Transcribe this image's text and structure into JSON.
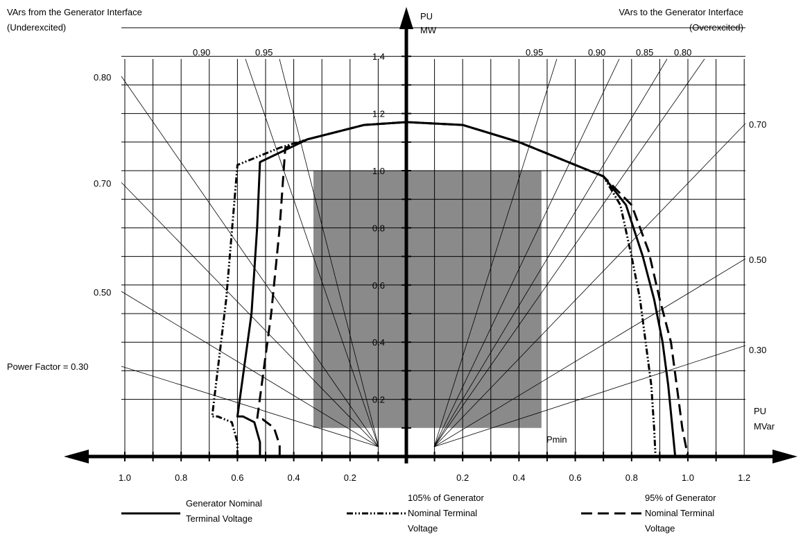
{
  "chart_data": {
    "type": "line",
    "title": "",
    "header_left": [
      "VArs from the Generator Interface",
      "(Underexcited)"
    ],
    "header_right": [
      "VArs to the Generator Interface",
      "(Overexcited)"
    ],
    "y_axis_label": [
      "PU",
      "MW"
    ],
    "x_axis_label": [
      "PU",
      "MVar"
    ],
    "xlim": [
      -1.1,
      1.2
    ],
    "ylim": [
      0,
      1.4
    ],
    "grid": true,
    "x_ticks_left": [
      "1.0",
      "0.8",
      "0.6",
      "0.4",
      "0.2"
    ],
    "x_ticks_right": [
      "0.2",
      "0.4",
      "0.6",
      "0.8",
      "1.0",
      "1.2"
    ],
    "y_ticks": [
      "0.2",
      "0.4",
      "0.6",
      "0.8",
      "1.0",
      "1.2",
      "1.4"
    ],
    "pmin_label": "Pmin",
    "shaded_region": {
      "x": [
        -0.33,
        0.48
      ],
      "y": [
        0.1,
        1.0
      ]
    },
    "power_factor_lines": [
      {
        "pf": "0.90",
        "side": "top"
      },
      {
        "pf": "0.95",
        "side": "top"
      },
      {
        "pf": "0.95",
        "side": "top"
      },
      {
        "pf": "0.90",
        "side": "top"
      },
      {
        "pf": "0.85",
        "side": "top"
      },
      {
        "pf": "0.80",
        "side": "top"
      },
      {
        "pf": "0.80",
        "side": "left"
      },
      {
        "pf": "0.70",
        "side": "left"
      },
      {
        "pf": "0.50",
        "side": "left"
      },
      {
        "pf": "Power Factor = 0.30",
        "side": "left"
      },
      {
        "pf": "0.70",
        "side": "right"
      },
      {
        "pf": "0.50",
        "side": "right"
      },
      {
        "pf": "0.30",
        "side": "right"
      }
    ],
    "series": [
      {
        "name": "Generator Nominal Terminal Voltage",
        "style": "solid",
        "points": [
          [
            -0.52,
            0.0
          ],
          [
            -0.52,
            0.05
          ],
          [
            -0.54,
            0.12
          ],
          [
            -0.58,
            0.14
          ],
          [
            -0.6,
            0.14
          ],
          [
            -0.55,
            0.5
          ],
          [
            -0.53,
            0.8
          ],
          [
            -0.52,
            1.03
          ],
          [
            -0.35,
            1.11
          ],
          [
            -0.15,
            1.16
          ],
          [
            0.0,
            1.17
          ],
          [
            0.2,
            1.16
          ],
          [
            0.4,
            1.1
          ],
          [
            0.55,
            1.04
          ],
          [
            0.7,
            0.98
          ],
          [
            0.78,
            0.88
          ],
          [
            0.84,
            0.7
          ],
          [
            0.88,
            0.55
          ],
          [
            0.91,
            0.4
          ],
          [
            0.93,
            0.25
          ],
          [
            0.945,
            0.1
          ],
          [
            0.955,
            0.0
          ]
        ]
      },
      {
        "name": "105% of Generator Nominal Terminal Voltage",
        "style": "dash-dot-dot",
        "points": [
          [
            -0.6,
            0.0
          ],
          [
            -0.6,
            0.05
          ],
          [
            -0.62,
            0.12
          ],
          [
            -0.67,
            0.14
          ],
          [
            -0.69,
            0.14
          ],
          [
            -0.64,
            0.55
          ],
          [
            -0.6,
            1.02
          ],
          [
            -0.45,
            1.08
          ],
          [
            -0.35,
            1.11
          ],
          [
            -0.15,
            1.16
          ],
          [
            0.0,
            1.17
          ],
          [
            0.2,
            1.16
          ],
          [
            0.4,
            1.1
          ],
          [
            0.55,
            1.04
          ],
          [
            0.7,
            0.98
          ],
          [
            0.76,
            0.88
          ],
          [
            0.8,
            0.7
          ],
          [
            0.83,
            0.55
          ],
          [
            0.85,
            0.4
          ],
          [
            0.87,
            0.25
          ],
          [
            0.88,
            0.1
          ],
          [
            0.885,
            0.0
          ]
        ]
      },
      {
        "name": "95% of Generator Nominal Terminal Voltage",
        "style": "dashed",
        "points": [
          [
            -0.45,
            0.0
          ],
          [
            -0.45,
            0.04
          ],
          [
            -0.47,
            0.1
          ],
          [
            -0.51,
            0.13
          ],
          [
            -0.53,
            0.13
          ],
          [
            -0.48,
            0.5
          ],
          [
            -0.45,
            0.8
          ],
          [
            -0.43,
            1.08
          ],
          [
            -0.35,
            1.11
          ],
          [
            -0.15,
            1.16
          ],
          [
            0.0,
            1.17
          ],
          [
            0.2,
            1.16
          ],
          [
            0.4,
            1.1
          ],
          [
            0.55,
            1.04
          ],
          [
            0.7,
            0.98
          ],
          [
            0.8,
            0.88
          ],
          [
            0.86,
            0.72
          ],
          [
            0.9,
            0.55
          ],
          [
            0.94,
            0.4
          ],
          [
            0.96,
            0.25
          ],
          [
            0.98,
            0.1
          ],
          [
            1.0,
            0.0
          ]
        ]
      }
    ]
  },
  "legend": [
    {
      "lines": [
        "Generator Nominal",
        "Terminal Voltage"
      ],
      "style": "solid"
    },
    {
      "lines": [
        "105% of Generator",
        "Nominal Terminal",
        "Voltage"
      ],
      "style": "dash-dot-dot"
    },
    {
      "lines": [
        "95% of Generator",
        "Nominal Terminal",
        "Voltage"
      ],
      "style": "dashed"
    }
  ],
  "colors": {
    "shade": "#8a8a8a",
    "grid": "#000000",
    "ink": "#000000"
  }
}
